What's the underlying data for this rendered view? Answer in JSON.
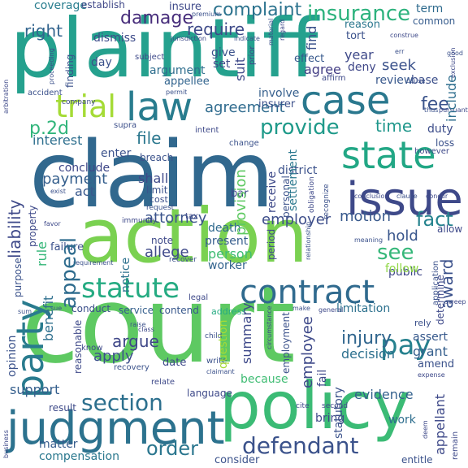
{
  "words": {
    "court": "court",
    "claim": "claim",
    "plaintiff": "plaintiff",
    "action": "action",
    "policy": "policy",
    "judgment": "judgment",
    "issue": "issue",
    "case": "case",
    "state": "state",
    "contract": "contract",
    "statute": "statute",
    "party": "party",
    "trial": "trial",
    "law": "law",
    "defendant": "defendant",
    "insurance": "insurance",
    "damage": "damage",
    "complaint": "complaint",
    "provide": "provide",
    "section": "section",
    "order": "order",
    "fact": "fact",
    "pay": "pay",
    "see": "see",
    "hold": "hold",
    "award": "award",
    "appeal": "appeal",
    "right": "right",
    "require": "require",
    "dismiss": "dismiss",
    "coverage": "coverage",
    "agreement": "agreement",
    "fee": "fee",
    "time": "time",
    "file": "file",
    "p2d": "p.2d",
    "liability": "liability",
    "payment": "payment",
    "interest": "interest",
    "employee": "employee",
    "injury": "injury",
    "summary": "summary",
    "decision": "decision",
    "evidence": "evidence",
    "motion": "motion",
    "employer": "employer",
    "attorney": "attorney",
    "argue": "argue",
    "apply": "apply",
    "benefit": "benefit",
    "support": "support",
    "compensation": "compensation",
    "matter": "matter",
    "rule": "rule",
    "allege": "allege",
    "question": "question",
    "person": "person",
    "present": "present",
    "worker": "worker",
    "notice": "notice",
    "death": "death",
    "conclude": "conclude",
    "grant": "grant",
    "assert": "assert",
    "work": "work",
    "appellant": "appellant",
    "district": "district",
    "public": "public",
    "duty": "duty",
    "receive": "receive",
    "provision": "provision",
    "include": "include",
    "seek": "seek",
    "review": "review",
    "base": "base",
    "year": "year",
    "deny": "deny",
    "agree": "agree",
    "effect": "effect",
    "reason": "reason",
    "tort": "tort",
    "term": "term",
    "common": "common",
    "insure": "insure",
    "establish": "establish",
    "find": "find",
    "give": "give",
    "set": "set",
    "suit": "suit",
    "involve": "involve",
    "insurer": "insurer",
    "settlement": "settlement",
    "enter": "enter",
    "breach": "breach",
    "shall": "shall",
    "act": "act",
    "day": "day",
    "argument": "argument",
    "appellee": "appellee",
    "finding": "finding",
    "limitation": "limitation",
    "determine": "determine",
    "amend": "amend",
    "bring": "bring",
    "because": "because",
    "language": "language",
    "consider": "consider",
    "result": "result",
    "opinion": "opinion",
    "conduct": "conduct",
    "service": "service",
    "contend": "contend",
    "date": "date",
    "follow": "follow",
    "failure": "failure",
    "period": "period",
    "personal": "personal",
    "address": "address",
    "employment": "employment",
    "fail": "fail",
    "statutory": "statutory",
    "second": "second",
    "entitle": "entitle",
    "loss": "loss",
    "bar": "bar",
    "limit": "limit",
    "cost": "cost",
    "note": "note",
    "purpose": "purpose",
    "property": "property",
    "allow": "allow",
    "application": "application",
    "legal": "legal",
    "recovery": "recovery",
    "know": "know",
    "reasonable": "reasonable",
    "subject": "subject",
    "prior": "prior",
    "jurisdiction": "jurisdiction",
    "change": "change",
    "intent": "intent",
    "rely": "rely",
    "however": "however",
    "supra": "supra",
    "recognize": "recognize",
    "obligation": "obligation",
    "meaning": "meaning",
    "expense": "expense",
    "relate": "relate",
    "write": "write",
    "cite": "cite",
    "child": "child",
    "circumstance": "circumstance",
    "relationship": "relationship",
    "company": "company",
    "proceeding": "proceeding",
    "accident": "accident",
    "request": "request",
    "good": "good",
    "thus": "thus",
    "pursuant": "pursuant",
    "immunity": "immunity",
    "tax": "tax",
    "recover": "recover",
    "conclusion": "conclusion",
    "clause": "clause",
    "concur": "concur",
    "affirm": "affirm",
    "indicate": "indicate",
    "arbitration": "arbitration",
    "permit": "permit",
    "premium": "premium",
    "material": "material",
    "regard": "regard",
    "construe": "construe",
    "favor": "favor",
    "exist": "exist",
    "requirement": "requirement",
    "sue": "sue",
    "business": "business",
    "claimant": "claimant",
    "deem": "deem",
    "sweep": "sweep",
    "general": "general",
    "remain": "remain",
    "class": "class",
    "raise": "raise",
    "err": "err",
    "cause": "cause",
    "exclusion": "exclusion",
    "sum": "sum",
    "make": "make"
  }
}
